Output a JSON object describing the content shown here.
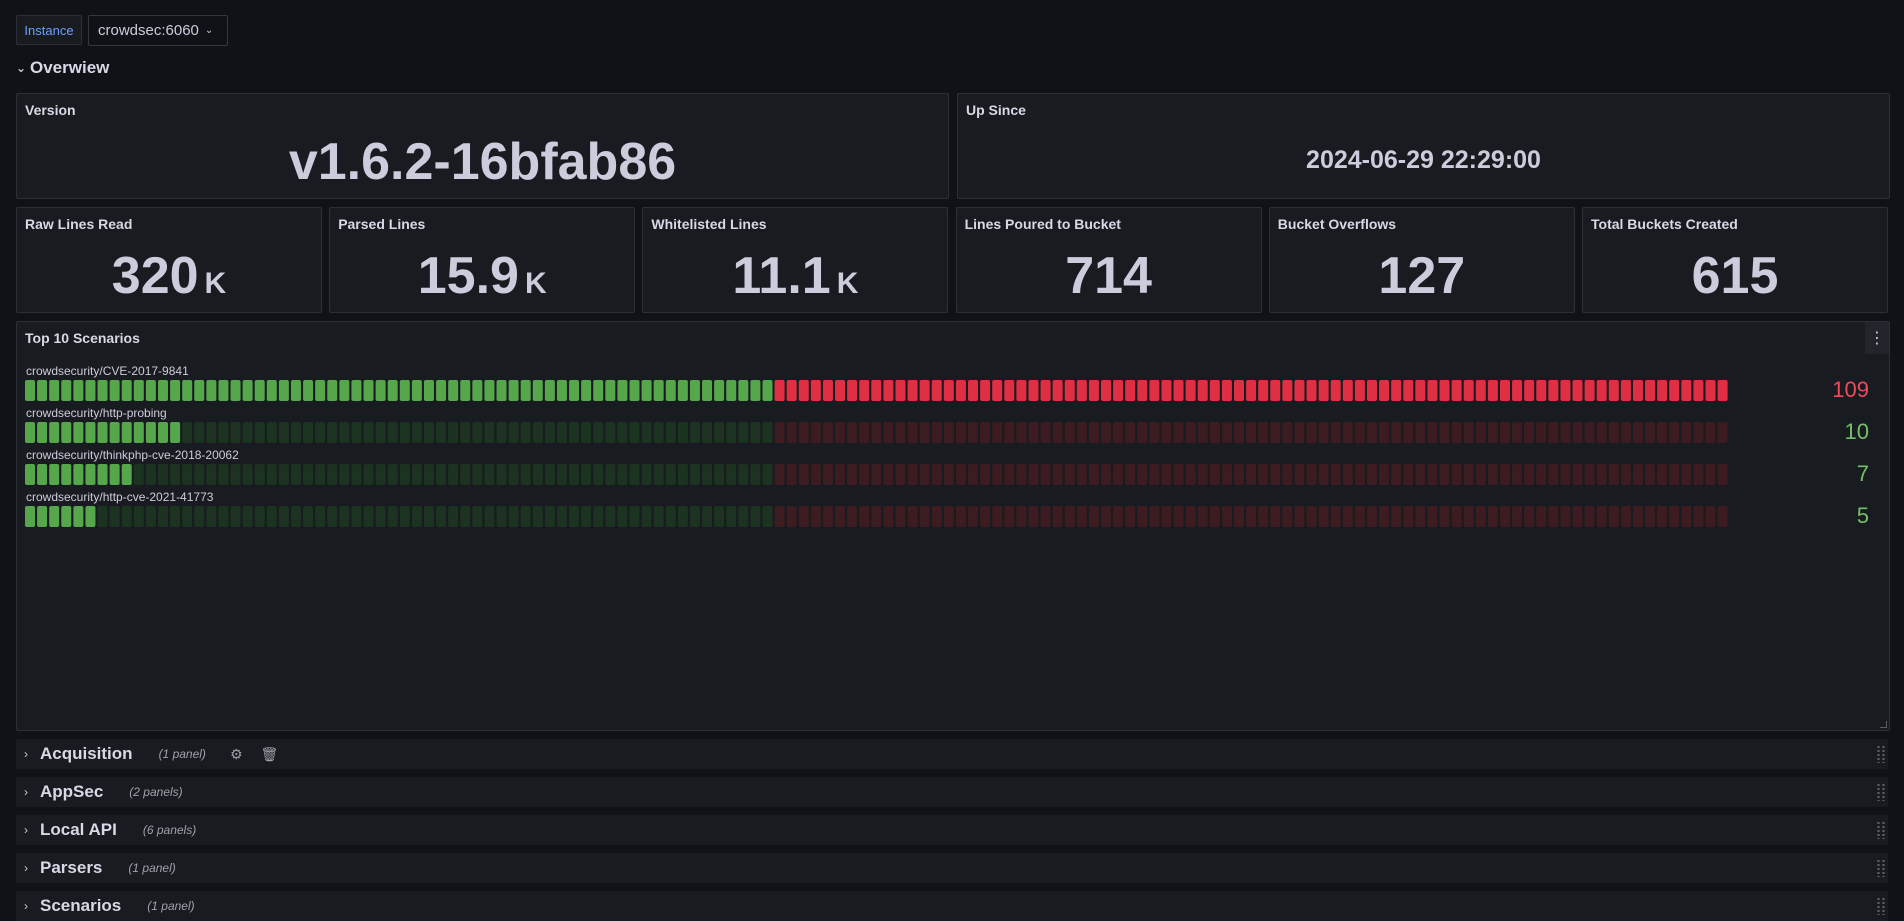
{
  "variables": {
    "label": "Instance",
    "value": "crowdsec:6060"
  },
  "overview": {
    "title": "Overwiew"
  },
  "version": {
    "title": "Version",
    "value": "v1.6.2-16bfab86"
  },
  "up_since": {
    "title": "Up Since",
    "value": "2024-06-29 22:29:00"
  },
  "stats": [
    {
      "title": "Raw Lines Read",
      "value": "320",
      "unit": "K"
    },
    {
      "title": "Parsed Lines",
      "value": "15.9",
      "unit": "K"
    },
    {
      "title": "Whitelisted Lines",
      "value": "11.1",
      "unit": "K"
    },
    {
      "title": "Lines Poured to Bucket",
      "value": "714",
      "unit": ""
    },
    {
      "title": "Bucket Overflows",
      "value": "127",
      "unit": ""
    },
    {
      "title": "Total Buckets Created",
      "value": "615",
      "unit": ""
    }
  ],
  "top_scenarios": {
    "title": "Top 10 Scenarios",
    "menu_icon": "kebab-menu-icon",
    "max": 109,
    "threshold_fraction": 0.4365,
    "colors": {
      "green": "#56a64b",
      "green_dim": "#1d3321",
      "red": "#e02f44",
      "red_dim": "#3d1c21",
      "value_green": "#73bf69",
      "value_red": "#f2495c"
    },
    "rows": [
      {
        "name": "crowdsecurity/CVE-2017-9841",
        "value": 109,
        "display": "109"
      },
      {
        "name": "crowdsecurity/http-probing",
        "value": 10,
        "display": "10"
      },
      {
        "name": "crowdsecurity/thinkphp-cve-2018-20062",
        "value": 7,
        "display": "7"
      },
      {
        "name": "crowdsecurity/http-cve-2021-41773",
        "value": 5,
        "display": "5"
      }
    ]
  },
  "collapsed_rows": [
    {
      "title": "Acquisition",
      "count": "(1 panel)",
      "icons": [
        "gear-icon",
        "trash-icon"
      ]
    },
    {
      "title": "AppSec",
      "count": "(2 panels)",
      "icons": []
    },
    {
      "title": "Local API",
      "count": "(6 panels)",
      "icons": []
    },
    {
      "title": "Parsers",
      "count": "(1 panel)",
      "icons": []
    },
    {
      "title": "Scenarios",
      "count": "(1 panel)",
      "icons": []
    }
  ]
}
